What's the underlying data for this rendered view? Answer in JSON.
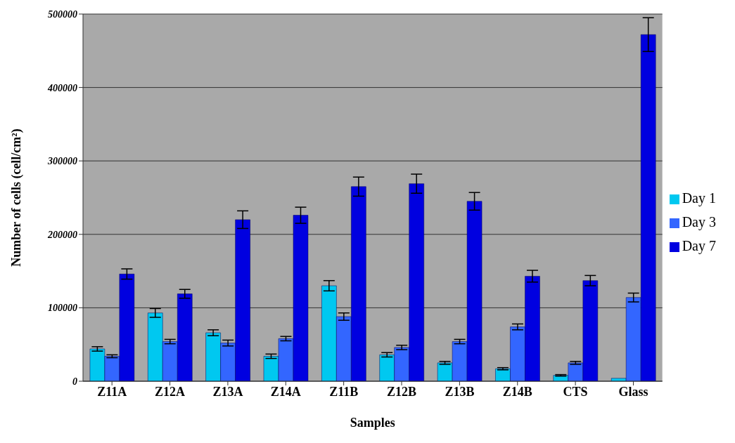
{
  "chart_data": {
    "type": "bar",
    "xlabel": "Samples",
    "ylabel": "Number of cells (cell/cm²)",
    "categories": [
      "Z11A",
      "Z12A",
      "Z13A",
      "Z14A",
      "Z11B",
      "Z12B",
      "Z13B",
      "Z14B",
      "CTS",
      "Glass"
    ],
    "series": [
      {
        "name": "Day 1",
        "color": "#00c8f0",
        "values": [
          44000,
          93000,
          66000,
          34000,
          130000,
          36000,
          25000,
          17000,
          8000,
          4000
        ],
        "errors": [
          3000,
          6000,
          4000,
          3000,
          7000,
          3000,
          2000,
          1500,
          1000,
          null
        ]
      },
      {
        "name": "Day 3",
        "color": "#3366ff",
        "values": [
          34000,
          54000,
          52000,
          58000,
          88000,
          46000,
          54000,
          74000,
          25000,
          114000
        ],
        "errors": [
          2000,
          3000,
          4000,
          3000,
          5000,
          3000,
          3000,
          4000,
          2000,
          6000
        ]
      },
      {
        "name": "Day 7",
        "color": "#0000e0",
        "values": [
          146000,
          119000,
          220000,
          226000,
          265000,
          269000,
          245000,
          143000,
          137000,
          472000
        ],
        "errors": [
          7000,
          6000,
          12000,
          11000,
          13000,
          13000,
          12000,
          8000,
          7000,
          23000
        ]
      }
    ],
    "ylim": [
      0,
      500000
    ],
    "yticks": [
      0,
      100000,
      200000,
      300000,
      400000,
      500000
    ],
    "grid": "y",
    "legend": "right"
  }
}
